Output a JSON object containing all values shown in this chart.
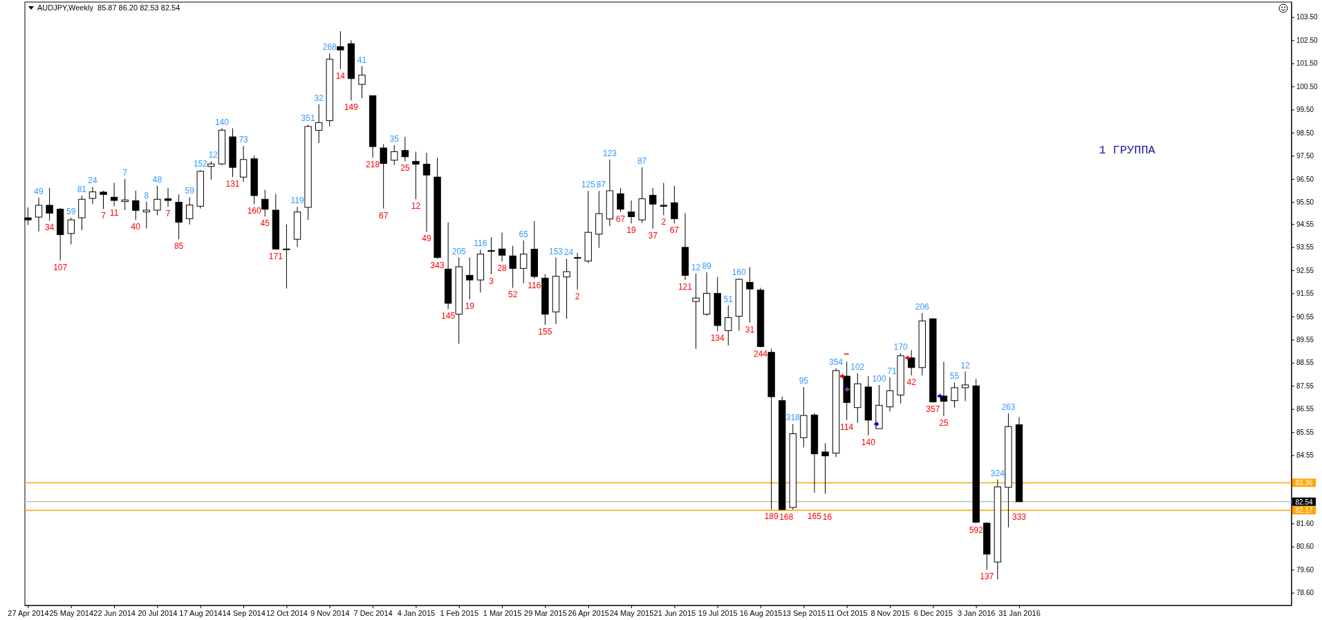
{
  "chart_data": {
    "type": "candlestick",
    "title": "AUDJPY,Weekly  85.87 86.20 82.53 82.54",
    "x": [
      "2014-04-27",
      "2014-05-04",
      "2014-05-11",
      "2014-05-18",
      "2014-05-25",
      "2014-06-01",
      "2014-06-08",
      "2014-06-15",
      "2014-06-22",
      "2014-06-29",
      "2014-07-06",
      "2014-07-13",
      "2014-07-20",
      "2014-07-27",
      "2014-08-03",
      "2014-08-10",
      "2014-08-17",
      "2014-08-24",
      "2014-08-31",
      "2014-09-07",
      "2014-09-14",
      "2014-09-21",
      "2014-09-28",
      "2014-10-05",
      "2014-10-12",
      "2014-10-19",
      "2014-10-26",
      "2014-11-02",
      "2014-11-09",
      "2014-11-16",
      "2014-11-23",
      "2014-11-30",
      "2014-12-07",
      "2014-12-14",
      "2014-12-21",
      "2014-12-28",
      "2015-01-04",
      "2015-01-11",
      "2015-01-18",
      "2015-01-25",
      "2015-02-01",
      "2015-02-08",
      "2015-02-15",
      "2015-02-22",
      "2015-03-01",
      "2015-03-08",
      "2015-03-15",
      "2015-03-22",
      "2015-03-29",
      "2015-04-05",
      "2015-04-12",
      "2015-04-19",
      "2015-04-26",
      "2015-05-03",
      "2015-05-10",
      "2015-05-17",
      "2015-05-24",
      "2015-05-31",
      "2015-06-07",
      "2015-06-14",
      "2015-06-21",
      "2015-06-28",
      "2015-07-05",
      "2015-07-12",
      "2015-07-19",
      "2015-07-26",
      "2015-08-02",
      "2015-08-09",
      "2015-08-16",
      "2015-08-23",
      "2015-08-30",
      "2015-09-06",
      "2015-09-13",
      "2015-09-20",
      "2015-09-27",
      "2015-10-04",
      "2015-10-11",
      "2015-10-18",
      "2015-10-25",
      "2015-11-01",
      "2015-11-08",
      "2015-11-15",
      "2015-11-22",
      "2015-11-29",
      "2015-12-06",
      "2015-12-13",
      "2015-12-20",
      "2015-12-27",
      "2016-01-03",
      "2016-01-10",
      "2016-01-17",
      "2016-01-24",
      "2016-01-31"
    ],
    "ohlc": [
      [
        94.82,
        95.27,
        94.51,
        94.73
      ],
      [
        94.85,
        95.69,
        94.23,
        95.36
      ],
      [
        95.36,
        96.11,
        94.7,
        95.02
      ],
      [
        95.19,
        95.25,
        92.97,
        94.09
      ],
      [
        94.14,
        94.82,
        93.67,
        94.73
      ],
      [
        94.82,
        95.78,
        94.28,
        95.62
      ],
      [
        95.66,
        96.16,
        95.41,
        95.94
      ],
      [
        95.93,
        95.99,
        95.2,
        95.83
      ],
      [
        95.71,
        96.33,
        95.32,
        95.57
      ],
      [
        95.52,
        96.5,
        95.15,
        95.59
      ],
      [
        95.56,
        95.99,
        94.73,
        95.14
      ],
      [
        95.07,
        95.52,
        94.36,
        95.15
      ],
      [
        95.15,
        96.2,
        94.93,
        95.62
      ],
      [
        95.64,
        96.11,
        95.29,
        95.57
      ],
      [
        95.49,
        95.83,
        93.89,
        94.63
      ],
      [
        94.78,
        95.71,
        94.53,
        95.37
      ],
      [
        95.32,
        96.88,
        95.22,
        96.83
      ],
      [
        97.04,
        97.27,
        96.47,
        97.15
      ],
      [
        97.15,
        98.69,
        97.09,
        98.61
      ],
      [
        98.32,
        98.69,
        96.58,
        97.0
      ],
      [
        96.58,
        97.93,
        96.38,
        97.34
      ],
      [
        97.37,
        97.51,
        95.41,
        95.78
      ],
      [
        95.62,
        96.03,
        94.87,
        95.19
      ],
      [
        95.15,
        95.86,
        93.44,
        93.47
      ],
      [
        93.45,
        94.53,
        91.76,
        93.47
      ],
      [
        93.89,
        95.29,
        93.56,
        95.07
      ],
      [
        95.27,
        98.85,
        94.73,
        98.77
      ],
      [
        98.6,
        99.73,
        98.05,
        98.94
      ],
      [
        99.02,
        101.93,
        98.77,
        101.68
      ],
      [
        102.22,
        102.89,
        101.24,
        102.08
      ],
      [
        102.35,
        102.5,
        99.9,
        100.84
      ],
      [
        100.59,
        101.38,
        99.99,
        100.99
      ],
      [
        100.1,
        100.11,
        97.42,
        97.9
      ],
      [
        97.84,
        98.01,
        95.22,
        97.17
      ],
      [
        97.31,
        97.96,
        97.1,
        97.68
      ],
      [
        97.73,
        98.32,
        97.26,
        97.46
      ],
      [
        97.26,
        97.68,
        95.62,
        97.14
      ],
      [
        97.14,
        97.63,
        94.21,
        96.67
      ],
      [
        96.58,
        97.42,
        93.05,
        93.1
      ],
      [
        92.6,
        94.62,
        90.87,
        91.12
      ],
      [
        90.65,
        93.1,
        89.37,
        92.7
      ],
      [
        92.33,
        93.1,
        91.29,
        92.13
      ],
      [
        92.13,
        93.44,
        91.59,
        93.25
      ],
      [
        93.4,
        93.98,
        92.38,
        93.37
      ],
      [
        93.47,
        94.18,
        92.93,
        93.2
      ],
      [
        93.17,
        93.61,
        91.79,
        92.63
      ],
      [
        92.63,
        93.84,
        91.99,
        93.25
      ],
      [
        93.46,
        94.68,
        92.19,
        92.28
      ],
      [
        92.21,
        92.38,
        90.19,
        90.65
      ],
      [
        90.75,
        93.1,
        90.22,
        92.29
      ],
      [
        92.26,
        93.05,
        90.45,
        92.49
      ],
      [
        93.1,
        93.3,
        91.71,
        93.07
      ],
      [
        92.95,
        95.98,
        92.86,
        94.19
      ],
      [
        94.11,
        95.98,
        93.52,
        95.0
      ],
      [
        94.77,
        97.34,
        94.46,
        95.99
      ],
      [
        95.86,
        96.11,
        95.07,
        95.19
      ],
      [
        95.07,
        95.57,
        94.57,
        94.87
      ],
      [
        94.73,
        97.0,
        94.6,
        95.64
      ],
      [
        95.79,
        96.11,
        94.35,
        95.41
      ],
      [
        95.36,
        96.33,
        94.93,
        95.32
      ],
      [
        95.47,
        96.21,
        94.57,
        94.78
      ],
      [
        93.54,
        95.02,
        92.13,
        92.33
      ],
      [
        91.2,
        92.41,
        89.15,
        91.35
      ],
      [
        90.65,
        92.46,
        90.58,
        91.55
      ],
      [
        91.55,
        92.26,
        89.91,
        90.16
      ],
      [
        89.94,
        91.03,
        89.3,
        90.5
      ],
      [
        90.56,
        92.19,
        89.94,
        92.16
      ],
      [
        92.03,
        92.68,
        90.28,
        91.74
      ],
      [
        91.69,
        91.79,
        89.22,
        89.25
      ],
      [
        89.0,
        89.15,
        82.2,
        87.08
      ],
      [
        86.91,
        87.08,
        82.17,
        82.2
      ],
      [
        82.29,
        85.9,
        82.2,
        85.48
      ],
      [
        85.31,
        87.5,
        84.89,
        86.27
      ],
      [
        86.29,
        86.36,
        82.93,
        84.61
      ],
      [
        84.69,
        85.06,
        82.88,
        84.52
      ],
      [
        84.64,
        88.31,
        84.47,
        88.21
      ],
      [
        87.97,
        88.59,
        86.07,
        86.83
      ],
      [
        86.61,
        88.09,
        85.95,
        87.64
      ],
      [
        87.5,
        87.97,
        85.4,
        86.07
      ],
      [
        85.7,
        87.59,
        85.7,
        86.71
      ],
      [
        86.64,
        87.92,
        86.44,
        87.34
      ],
      [
        87.15,
        88.96,
        86.79,
        88.85
      ],
      [
        88.76,
        89.1,
        88.0,
        88.34
      ],
      [
        88.34,
        90.7,
        88.0,
        90.36
      ],
      [
        90.45,
        90.48,
        86.83,
        86.86
      ],
      [
        87.11,
        88.59,
        86.24,
        86.88
      ],
      [
        86.91,
        87.7,
        86.61,
        87.47
      ],
      [
        87.47,
        88.17,
        86.89,
        87.59
      ],
      [
        87.55,
        87.84,
        81.61,
        81.65
      ],
      [
        81.61,
        81.65,
        79.59,
        80.27
      ],
      [
        79.93,
        83.5,
        79.18,
        83.18
      ],
      [
        83.16,
        86.36,
        81.43,
        85.79
      ],
      [
        85.87,
        86.2,
        82.53,
        82.54
      ]
    ],
    "xlim": [
      "2014-04-25",
      "2016-07-26"
    ],
    "xticks": [
      {
        "value": "2014-04-27",
        "label": "27 Apr 2014"
      },
      {
        "value": "2014-05-25",
        "label": "25 May 2014"
      },
      {
        "value": "2014-06-22",
        "label": "22 Jun 2014"
      },
      {
        "value": "2014-07-20",
        "label": "20 Jul 2014"
      },
      {
        "value": "2014-08-17",
        "label": "17 Aug 2014"
      },
      {
        "value": "2014-09-14",
        "label": "14 Sep 2014"
      },
      {
        "value": "2014-10-12",
        "label": "12 Oct 2014"
      },
      {
        "value": "2014-11-09",
        "label": "9 Nov 2014"
      },
      {
        "value": "2014-12-07",
        "label": "7 Dec 2014"
      },
      {
        "value": "2015-01-04",
        "label": "4 Jan 2015"
      },
      {
        "value": "2015-02-01",
        "label": "1 Feb 2015"
      },
      {
        "value": "2015-03-01",
        "label": "1 Mar 2015"
      },
      {
        "value": "2015-03-29",
        "label": "29 Mar 2015"
      },
      {
        "value": "2015-04-26",
        "label": "26 Apr 2015"
      },
      {
        "value": "2015-05-24",
        "label": "24 May 2015"
      },
      {
        "value": "2015-06-21",
        "label": "21 Jun 2015"
      },
      {
        "value": "2015-07-19",
        "label": "19 Jul 2015"
      },
      {
        "value": "2015-08-16",
        "label": "16 Aug 2015"
      },
      {
        "value": "2015-09-13",
        "label": "13 Sep 2015"
      },
      {
        "value": "2015-10-11",
        "label": "11 Oct 2015"
      },
      {
        "value": "2015-11-08",
        "label": "8 Nov 2015"
      },
      {
        "value": "2015-12-06",
        "label": "6 Dec 2015"
      },
      {
        "value": "2016-01-03",
        "label": "3 Jan 2016"
      },
      {
        "value": "2016-01-31",
        "label": "31 Jan 2016"
      }
    ],
    "ylim": [
      78.05,
      104.15
    ],
    "yticks": [
      {
        "value": 103.5,
        "label": "103.50"
      },
      {
        "value": 102.5,
        "label": "102.50"
      },
      {
        "value": 101.5,
        "label": "101.50"
      },
      {
        "value": 100.5,
        "label": "100.50"
      },
      {
        "value": 99.5,
        "label": "99.50"
      },
      {
        "value": 98.5,
        "label": "98.50"
      },
      {
        "value": 97.5,
        "label": "97.50"
      },
      {
        "value": 96.5,
        "label": "96.50"
      },
      {
        "value": 95.5,
        "label": "95.50"
      },
      94.55,
      93.55,
      92.55,
      91.55,
      90.55,
      89.55,
      88.55,
      87.55,
      86.55,
      85.55,
      84.55,
      {
        "value": 81.6,
        "label": "81.60"
      },
      {
        "value": 80.6,
        "label": "80.60"
      },
      {
        "value": 79.6,
        "label": "79.60"
      },
      {
        "value": 78.6,
        "label": "78.60"
      }
    ],
    "ref_lines": [
      {
        "axis": "y",
        "value": 83.36,
        "label": "83.36",
        "color": "#ffa500"
      },
      {
        "axis": "y",
        "value": 82.17,
        "label": "82.17",
        "color": "#ffa500"
      },
      {
        "axis": "y",
        "value": 82.54,
        "label": "82.54",
        "color": "#c0c0c0"
      }
    ],
    "grid": false,
    "annotations": [
      "1 ГРУППА",
      {
        "text": "49",
        "x": "2014-05-04",
        "y": 95.69
      },
      {
        "text": "34",
        "x": "2014-05-11",
        "y": 94.7
      },
      {
        "text": "107",
        "x": "2014-05-18",
        "y": 92.97
      },
      {
        "text": "59",
        "x": "2014-05-25",
        "y": 94.82
      },
      {
        "text": "81",
        "x": "2014-06-01",
        "y": 95.78
      },
      {
        "text": "24",
        "x": "2014-06-08",
        "y": 96.16
      },
      {
        "text": "7",
        "x": "2014-06-15",
        "y": 95.2
      },
      {
        "text": "11",
        "x": "2014-06-22",
        "y": 95.32
      },
      {
        "text": "7",
        "x": "2014-06-29",
        "y": 96.5
      },
      {
        "text": "40",
        "x": "2014-07-06",
        "y": 94.73
      },
      {
        "text": "8",
        "x": "2014-07-13",
        "y": 95.52
      },
      {
        "text": "48",
        "x": "2014-07-20",
        "y": 96.2
      },
      {
        "text": "7",
        "x": "2014-07-27",
        "y": 95.29
      },
      {
        "text": "85",
        "x": "2014-08-03",
        "y": 93.89
      },
      {
        "text": "59",
        "x": "2014-08-10",
        "y": 95.71
      },
      {
        "text": "152",
        "x": "2014-08-17",
        "y": 96.88
      },
      {
        "text": "12",
        "x": "2014-08-24",
        "y": 97.27
      },
      {
        "text": "140",
        "x": "2014-08-31",
        "y": 98.69
      },
      {
        "text": "131",
        "x": "2014-09-07",
        "y": 96.58
      },
      {
        "text": "73",
        "x": "2014-09-14",
        "y": 97.93
      },
      {
        "text": "160",
        "x": "2014-09-21",
        "y": 95.41
      },
      {
        "text": "45",
        "x": "2014-09-28",
        "y": 94.87
      },
      {
        "text": "171",
        "x": "2014-10-05",
        "y": 93.44
      },
      {
        "text": "119",
        "x": "2014-10-19",
        "y": 95.29
      },
      {
        "text": "351",
        "x": "2014-10-26",
        "y": 98.85
      },
      {
        "text": "32",
        "x": "2014-11-02",
        "y": 99.73
      },
      {
        "text": "268",
        "x": "2014-11-09",
        "y": 101.93
      },
      {
        "text": "14",
        "x": "2014-11-16",
        "y": 101.24
      },
      {
        "text": "149",
        "x": "2014-11-23",
        "y": 99.9
      },
      {
        "text": "41",
        "x": "2014-11-30",
        "y": 101.38
      },
      {
        "text": "218",
        "x": "2014-12-07",
        "y": 97.42
      },
      {
        "text": "67",
        "x": "2014-12-14",
        "y": 95.22
      },
      {
        "text": "35",
        "x": "2014-12-21",
        "y": 97.96
      },
      {
        "text": "25",
        "x": "2014-12-28",
        "y": 97.26
      },
      {
        "text": "12",
        "x": "2015-01-04",
        "y": 95.62
      },
      {
        "text": "49",
        "x": "2015-01-11",
        "y": 94.21
      },
      {
        "text": "343",
        "x": "2015-01-18",
        "y": 93.05
      },
      {
        "text": "145",
        "x": "2015-01-25",
        "y": 90.87
      },
      {
        "text": "205",
        "x": "2015-02-01",
        "y": 93.1
      },
      {
        "text": "19",
        "x": "2015-02-08",
        "y": 91.29
      },
      {
        "text": "116",
        "x": "2015-02-15",
        "y": 93.44
      },
      {
        "text": "3",
        "x": "2015-02-22",
        "y": 92.38
      },
      {
        "text": "28",
        "x": "2015-03-01",
        "y": 92.93
      },
      {
        "text": "52",
        "x": "2015-03-08",
        "y": 91.79
      },
      {
        "text": "65",
        "x": "2015-03-15",
        "y": 93.84
      },
      {
        "text": "116",
        "x": "2015-03-22",
        "y": 92.19
      },
      {
        "text": "155",
        "x": "2015-03-29",
        "y": 90.19
      },
      {
        "text": "153",
        "x": "2015-04-05",
        "y": 93.1
      },
      {
        "text": "24",
        "x": "2015-04-12",
        "y": 93.05
      },
      {
        "text": "2",
        "x": "2015-04-19",
        "y": 91.71
      },
      {
        "text": "125",
        "x": "2015-04-26",
        "y": 95.98
      },
      {
        "text": "87",
        "x": "2015-05-03",
        "y": 95.98
      },
      {
        "text": "123",
        "x": "2015-05-10",
        "y": 97.34
      },
      {
        "text": "67",
        "x": "2015-05-17",
        "y": 95.07
      },
      {
        "text": "19",
        "x": "2015-05-24",
        "y": 94.57
      },
      {
        "text": "87",
        "x": "2015-05-31",
        "y": 97.0
      },
      {
        "text": "37",
        "x": "2015-06-07",
        "y": 94.35
      },
      {
        "text": "2",
        "x": "2015-06-14",
        "y": 94.93
      },
      {
        "text": "67",
        "x": "2015-06-21",
        "y": 94.57
      },
      {
        "text": "121",
        "x": "2015-06-28",
        "y": 92.13
      },
      {
        "text": "12",
        "x": "2015-07-05",
        "y": 92.41
      },
      {
        "text": "89",
        "x": "2015-07-12",
        "y": 92.46
      },
      {
        "text": "134",
        "x": "2015-07-19",
        "y": 89.91
      },
      {
        "text": "51",
        "x": "2015-07-26",
        "y": 91.03
      },
      {
        "text": "160",
        "x": "2015-08-02",
        "y": 92.19
      },
      {
        "text": "31",
        "x": "2015-08-09",
        "y": 90.28
      },
      {
        "text": "244",
        "x": "2015-08-16",
        "y": 89.22
      },
      {
        "text": "189",
        "x": "2015-08-23",
        "y": 82.2
      },
      {
        "text": "168",
        "x": "2015-08-30",
        "y": 82.17
      },
      {
        "text": "318",
        "x": "2015-09-06",
        "y": 85.9
      },
      {
        "text": "95",
        "x": "2015-09-13",
        "y": 87.5
      },
      {
        "text": "165",
        "x": "2015-09-20",
        "y": 82.93
      },
      {
        "text": "16",
        "x": "2015-09-27",
        "y": 82.88
      },
      {
        "text": "354",
        "x": "2015-10-04",
        "y": 88.31
      },
      {
        "text": "114",
        "x": "2015-10-11",
        "y": 86.07
      },
      {
        "text": "102",
        "x": "2015-10-18",
        "y": 88.09
      },
      {
        "text": "140",
        "x": "2015-10-25",
        "y": 85.4
      },
      {
        "text": "100",
        "x": "2015-11-01",
        "y": 87.59
      },
      {
        "text": "71",
        "x": "2015-11-08",
        "y": 87.92
      },
      {
        "text": "170",
        "x": "2015-11-15",
        "y": 88.96
      },
      {
        "text": "42",
        "x": "2015-11-22",
        "y": 88.0
      },
      {
        "text": "206",
        "x": "2015-11-29",
        "y": 90.7
      },
      {
        "text": "357",
        "x": "2015-12-06",
        "y": 86.83
      },
      {
        "text": "25",
        "x": "2015-12-13",
        "y": 86.24
      },
      {
        "text": "55",
        "x": "2015-12-20",
        "y": 87.7
      },
      {
        "text": "12",
        "x": "2015-12-27",
        "y": 88.17
      },
      {
        "text": "592",
        "x": "2016-01-03",
        "y": 81.61
      },
      {
        "text": "137",
        "x": "2016-01-10",
        "y": 79.59
      },
      {
        "text": "324",
        "x": "2016-01-17",
        "y": 83.5
      },
      {
        "text": "263",
        "x": "2016-01-24",
        "y": 86.36
      },
      {
        "text": "333",
        "x": "2016-01-31",
        "y": 82.53
      }
    ]
  }
}
